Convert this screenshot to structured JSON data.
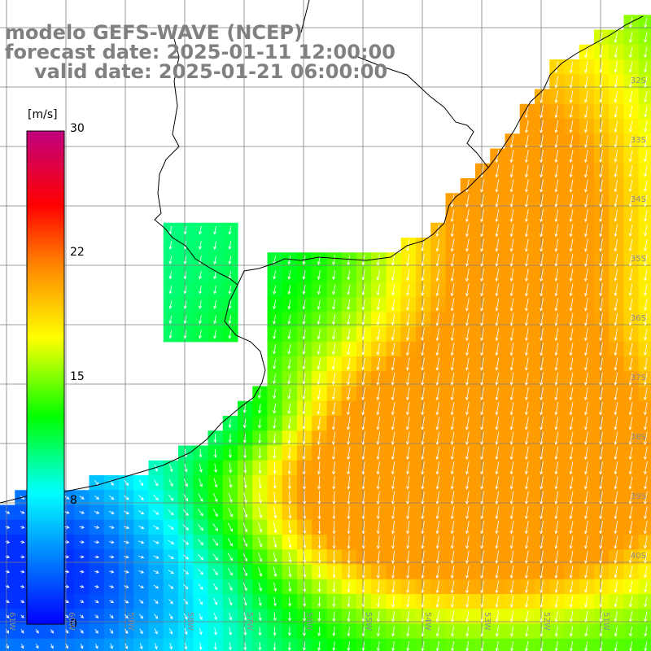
{
  "titles": {
    "line1": "modelo GEFS-WAVE (NCEP)",
    "line2": "forecast date: 2025-01-11 12:00:00",
    "line3": "valid date: 2025-01-21 06:00:00"
  },
  "colorbar": {
    "unit": "[m/s]",
    "ticks": [
      "30",
      "22",
      "15",
      "8",
      "0"
    ],
    "tick_values": [
      30,
      22,
      15,
      8,
      0
    ],
    "colors": [
      "#0000ff",
      "#00ffff",
      "#00ff00",
      "#ffff00",
      "#ff8000",
      "#ff0000",
      "#c0007f"
    ]
  },
  "axes": {
    "lat_labels": [
      "32S",
      "33S",
      "34S",
      "35S",
      "36S",
      "37S",
      "38S",
      "39S",
      "40S"
    ],
    "lon_labels": [
      "61W",
      "60W",
      "59W",
      "58W",
      "57W",
      "56W",
      "55W",
      "54W",
      "53W",
      "52W",
      "51W"
    ]
  },
  "field_description": "wind speed field with white direction arrows over the southwestern Atlantic off Uruguay and Buenos Aires; stronger winds (yellow/orange, ~17-20 m/s) offshore southeast, weaker winds (blue/cyan, ~2-8 m/s) in the southwest near the coast"
}
